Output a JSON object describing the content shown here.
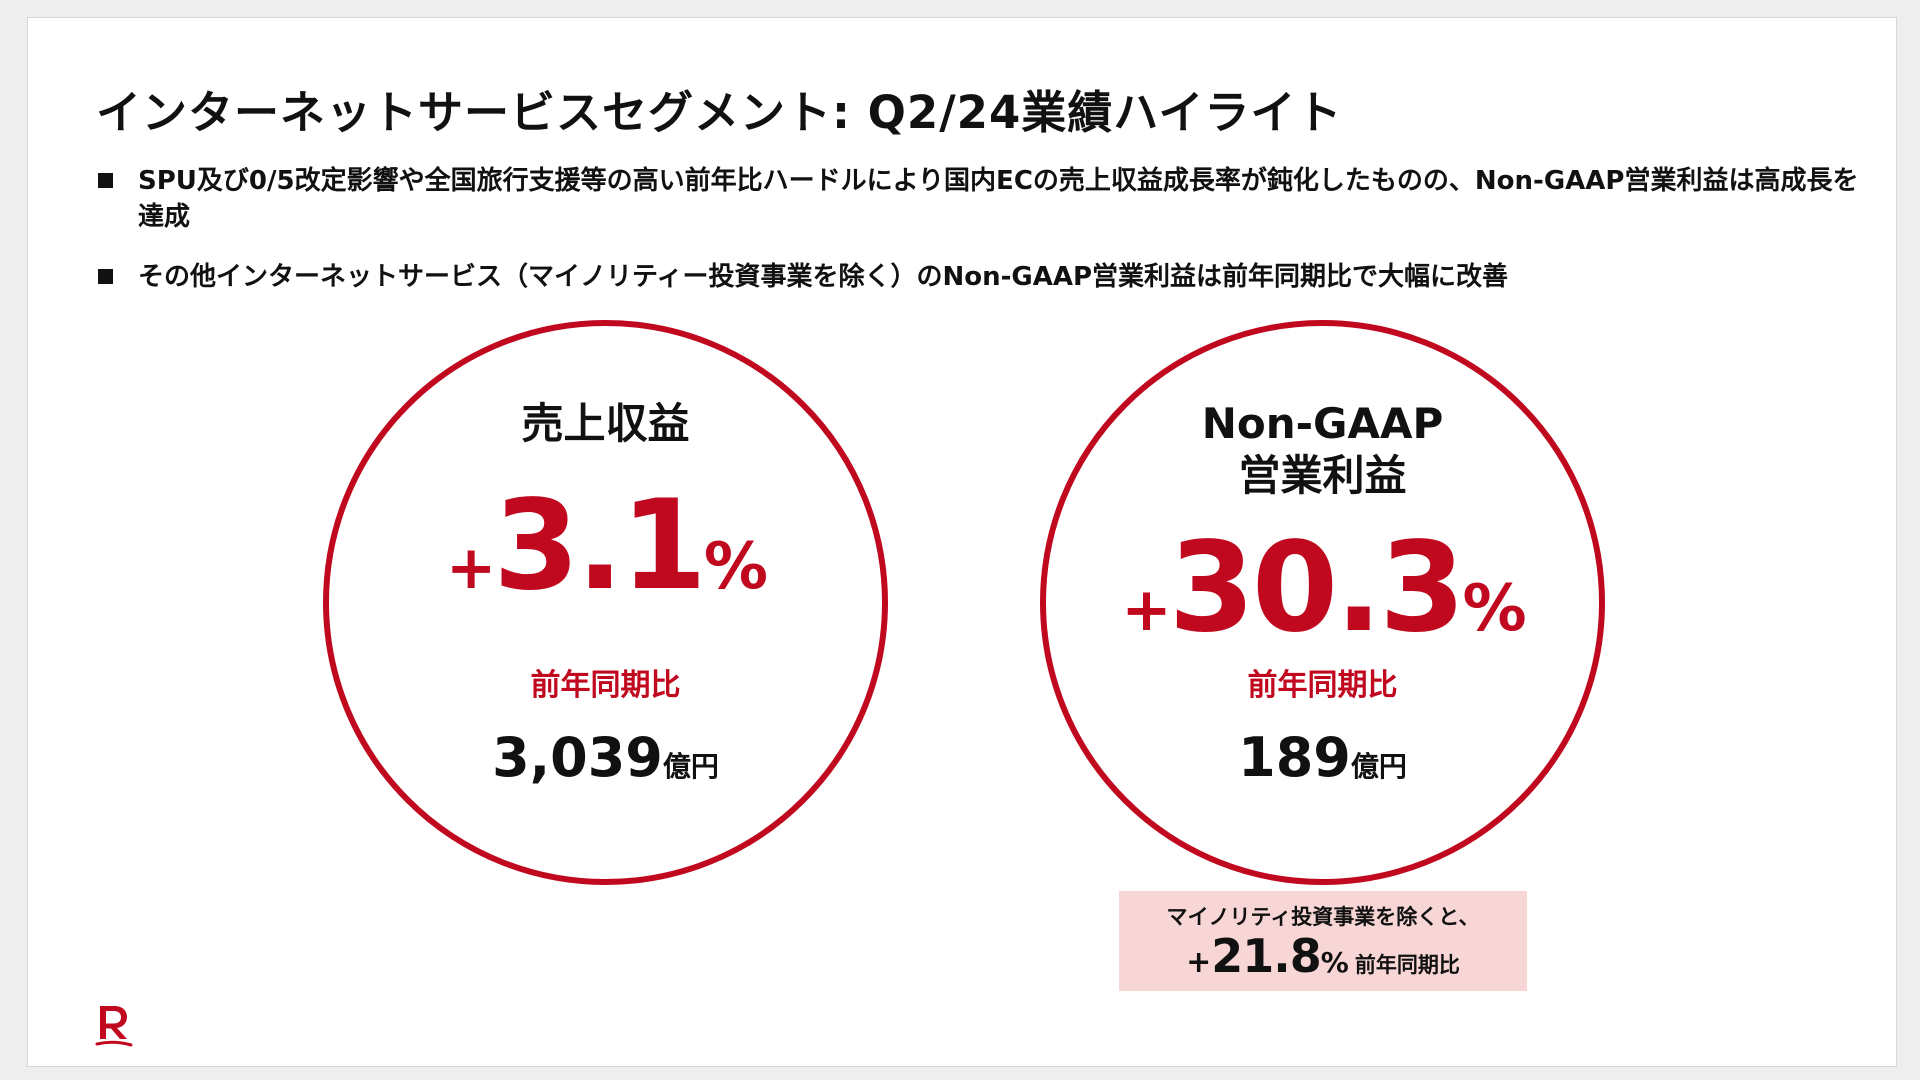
{
  "title": "インターネットサービスセグメント: Q2/24業績ハイライト",
  "bullets": [
    "SPU及び0/5改定影響や全国旅行支援等の高い前年比ハードルにより国内ECの売上収益成長率が鈍化したものの、Non-GAAP営業利益は高成長を達成",
    "その他インターネットサービス（マイノリティー投資事業を除く）のNon-GAAP営業利益は前年同期比で大幅に改善"
  ],
  "metrics": [
    {
      "title": "売上収益",
      "sign": "+",
      "change": "3.1",
      "pct": "%",
      "yoy_label": "前年同期比",
      "amount": "3,039",
      "unit": "億円"
    },
    {
      "title_line1": "Non-GAAP",
      "title_line2": "営業利益",
      "sign": "+",
      "change": "30.3",
      "pct": "%",
      "yoy_label": "前年同期比",
      "amount": "189",
      "unit": "億円"
    }
  ],
  "note": {
    "line1": "マイノリティ投資事業を除くと、",
    "sign": "+",
    "change": "21.8",
    "pct": "%",
    "label": "前年同期比"
  },
  "colors": {
    "accent": "#c0091f",
    "note_bg": "#f9d6d6",
    "text": "#111111"
  },
  "logo": {
    "icon": "rakuten-r-logo-icon"
  }
}
